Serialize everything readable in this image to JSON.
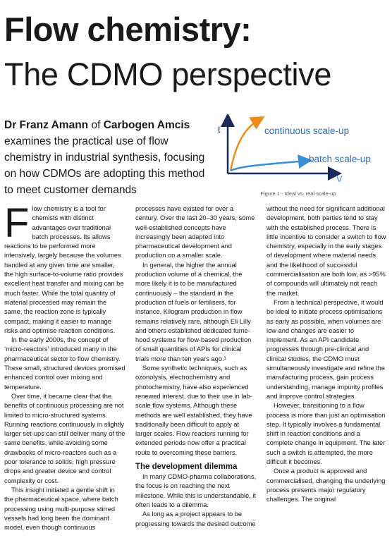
{
  "header": {
    "title_line1": "Flow chemistry:",
    "title_line2": "The CDMO perspective"
  },
  "standfirst": {
    "author": "Dr Franz Amann",
    "connector": "of",
    "organization": "Carbogen Amcis",
    "text": "examines the practical use of flow chemistry in industrial synthesis, focusing on how CDMOs are adopting this method to meet customer demands"
  },
  "figure": {
    "y_axis_label": "t",
    "x_axis_label": "V",
    "curve_labels": [
      "continuous scale-up",
      "batch scale-up"
    ],
    "caption": "Figure 1 - Ideal vs. real scale-up"
  },
  "body": {
    "sections": [
      {
        "paragraphs": [
          "Flow chemistry is a tool for chemists with distinct advantages over traditional batch processes. Its allows reactions to be performed more intensively, largely because the volumes handled at any given time are smaller, the high surface-to-volume ratio provides excellent heat transfer and mixing can be much faster. While the total quantity of material processed may remain the same, the reaction zone is typically compact, making it easier to manage risks and optimise reaction conditions.",
          "In the early 2000s, the concept of ‘micro-reactors’ introduced many in the pharmaceutical sector to flow chemistry. These small, structured devices promised enhanced control over mixing and temperature.",
          "Over time, it became clear that the benefits of continuous processing are not limited to micro-structured systems. Running reactions continuously in slightly larger set-ups can still deliver many of the same benefits, while avoiding some drawbacks of micro-reactors such as a poor tolerance to solids, high pressure drops and greater device and control complexity or cost.",
          "This insight initiated a gentle shift in the pharmaceutical space, where batch processing using multi-purpose stirred vessels had long been the dominant model, even though continuous processes have existed for over a century. Over the last 20–30 years, some well-established concepts have increasingly been adapted into pharmaceutical development and production on a smaller scale.",
          "In general, the higher the annual production volume of a chemical, the more likely it is to be manufactured continuously – the standard in the production of fuels or fertilisers, for instance. Kilogram production in flow remains relatively rare, although Eli Lilly and others established dedicated fume-hood systems for flow-based production of small quantities of APIs for clinical trials more than ten years ago.¹",
          "Some synthetic techniques, such as ozonolysis, electrochemistry and photochemistry, have also experienced renewed interest, due to their use in lab-scale flow systems. Although these methods are well established, they have traditionally been difficult to apply at larger scales. Flow reactors running for extended periods now offer a practical route to overcoming these barriers."
        ]
      },
      {
        "heading": "The development dilemma",
        "paragraphs": [
          "In many CDMO-pharma collaborations, the focus is on reaching the next milestone. While this is understandable, it often leads to a dilemma.",
          "As long as a project appears to be progressing towards the desired outcome without the need for significant additional development, both parties tend to stay with the established process. There is little incentive to consider a switch to flow chemistry, especially in the early stages of development where material needs and the likelihood of successful commercialisation are both low, as >95% of compounds will ultimately not reach the market.",
          "From a technical perspective, it would be ideal to initiate process optimisations as early as possible, when volumes are low and changes are easier to implement. As an API candidate progresses through pre-clinical and clinical studies, the CDMO must simultaneously investigate and refine the manufacturing process, gain process understanding, manage impurity profiles and improve control strategies.",
          "However, transitioning to a flow process is more than just an optimisation step. It typically involves a fundamental shift in reaction conditions and a complete change in equipment. The later such a switch is attempted, the more difficult it becomes.",
          "Once a product is approved and commercialised, changing the underlying process presents major regulatory challenges. The original"
        ]
      }
    ]
  }
}
